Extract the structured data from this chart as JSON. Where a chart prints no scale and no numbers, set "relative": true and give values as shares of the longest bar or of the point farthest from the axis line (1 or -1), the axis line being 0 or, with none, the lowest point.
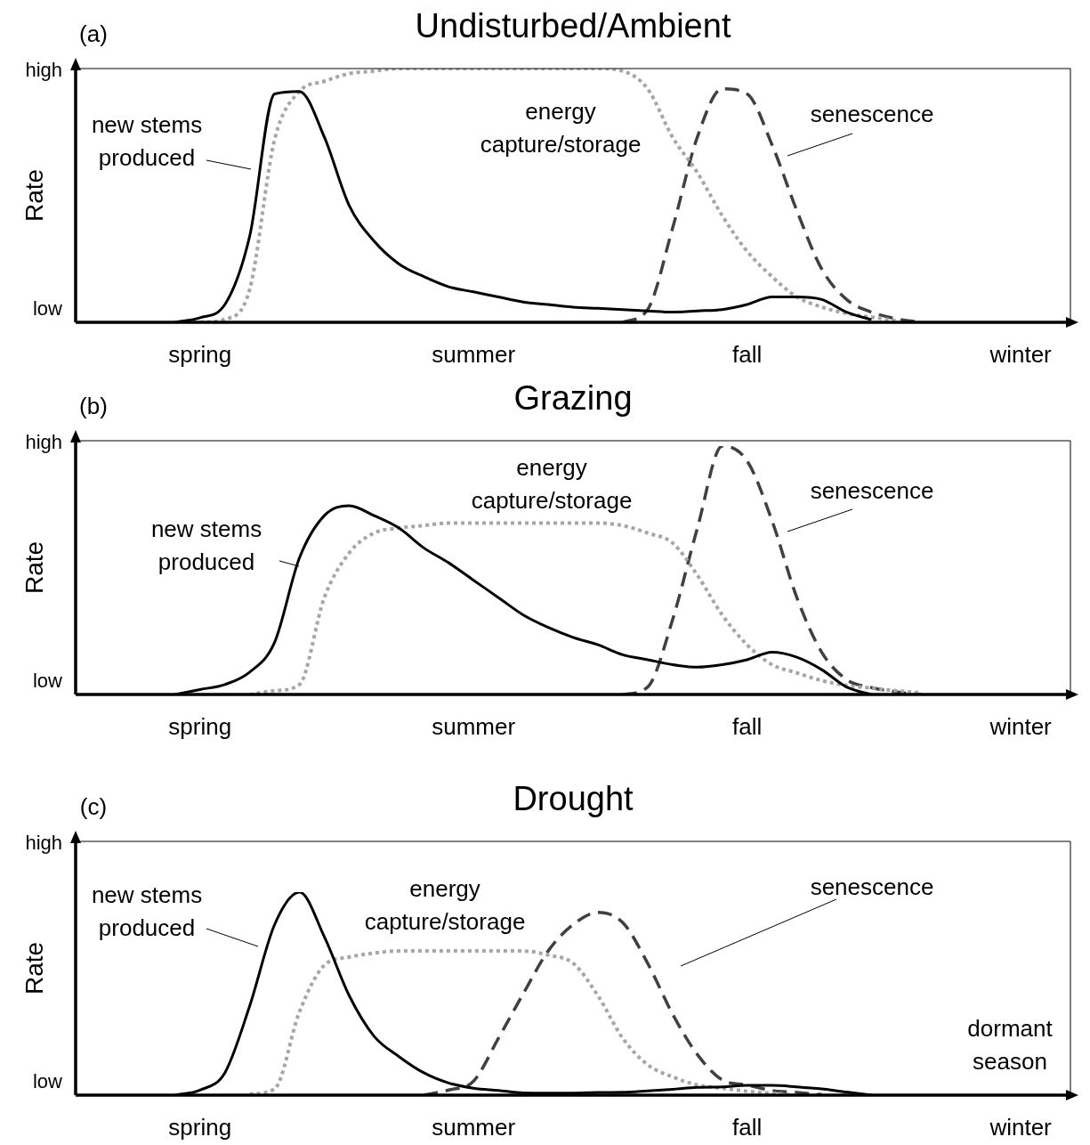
{
  "chart_data": [
    {
      "type": "line",
      "title": "Undisturbed/Ambient",
      "annotations": [
        "(a)",
        "high",
        "low"
      ],
      "ylabel": "Rate",
      "relative": true,
      "grid": false,
      "legend": false,
      "marker": "none",
      "categories": [
        null,
        null,
        null,
        null,
        null,
        "spring",
        null,
        null,
        null,
        null,
        null,
        null,
        null,
        null,
        null,
        null,
        "summer",
        null,
        null,
        null,
        null,
        null,
        null,
        null,
        null,
        null,
        null,
        "fall",
        null,
        null,
        null,
        null,
        null,
        null,
        null,
        null,
        null,
        null,
        "winter",
        null,
        null
      ],
      "series": [
        {
          "name": "new stems produced",
          "color": "#000000",
          "line_style": "solid",
          "values": [
            null,
            null,
            null,
            null,
            0,
            0.018,
            0.07,
            0.34,
            0.9,
            0.91,
            0.73,
            0.46,
            0.32,
            0.23,
            0.18,
            0.14,
            0.12,
            0.1,
            0.08,
            0.07,
            0.06,
            0.055,
            0.05,
            0.045,
            0.04,
            0.045,
            0.05,
            0.07,
            0.1,
            0.1,
            0.09,
            0.04,
            0.01,
            null,
            null,
            null,
            null,
            null,
            null,
            null,
            null
          ]
        },
        {
          "name": "energy capture/storage",
          "color": "#a6a6a6",
          "line_style": "dotted",
          "values": [
            null,
            null,
            null,
            null,
            null,
            0,
            0.012,
            0.13,
            0.72,
            0.91,
            0.95,
            0.98,
            0.99,
            1,
            1,
            1,
            1,
            1,
            1,
            1,
            1,
            1,
            0.99,
            0.92,
            0.73,
            0.59,
            0.42,
            0.28,
            0.18,
            0.1,
            0.06,
            0.035,
            0.02,
            0.007,
            null,
            null,
            null,
            null,
            null,
            null,
            null
          ]
        },
        {
          "name": "senescence",
          "color": "#404040",
          "line_style": "dashed",
          "values": [
            null,
            null,
            null,
            null,
            null,
            null,
            null,
            null,
            null,
            null,
            null,
            null,
            null,
            null,
            null,
            null,
            null,
            null,
            null,
            null,
            null,
            null,
            0,
            0.05,
            0.37,
            0.73,
            0.92,
            0.9,
            0.7,
            0.44,
            0.21,
            0.09,
            0.04,
            0.014,
            0,
            null,
            null,
            null,
            null,
            null,
            null
          ]
        }
      ]
    },
    {
      "type": "line",
      "title": "Grazing",
      "annotations": [
        "(b)",
        "high",
        "low"
      ],
      "ylabel": "Rate",
      "relative": true,
      "grid": false,
      "legend": false,
      "marker": "none",
      "categories": [
        null,
        null,
        null,
        null,
        null,
        "spring",
        null,
        null,
        null,
        null,
        null,
        null,
        null,
        null,
        null,
        null,
        "summer",
        null,
        null,
        null,
        null,
        null,
        null,
        null,
        null,
        null,
        null,
        "fall",
        null,
        null,
        null,
        null,
        null,
        null,
        null,
        null,
        null,
        null,
        "winter",
        null,
        null
      ],
      "series": [
        {
          "name": "new stems produced",
          "color": "#000000",
          "line_style": "solid",
          "values": [
            null,
            null,
            null,
            null,
            0,
            0.02,
            0.04,
            0.09,
            0.21,
            0.55,
            0.72,
            0.76,
            0.72,
            0.67,
            0.59,
            0.53,
            0.46,
            0.39,
            0.32,
            0.27,
            0.23,
            0.2,
            0.16,
            0.14,
            0.12,
            0.11,
            0.12,
            0.14,
            0.17,
            0.15,
            0.1,
            0.03,
            0,
            null,
            null,
            null,
            null,
            null,
            null,
            null,
            null
          ]
        },
        {
          "name": "energy capture/storage",
          "color": "#a6a6a6",
          "line_style": "dotted",
          "values": [
            null,
            null,
            null,
            null,
            null,
            null,
            null,
            0,
            0.015,
            0.04,
            0.39,
            0.57,
            0.65,
            0.67,
            0.68,
            0.69,
            0.69,
            0.69,
            0.69,
            0.69,
            0.69,
            0.69,
            0.68,
            0.65,
            0.61,
            0.48,
            0.32,
            0.2,
            0.12,
            0.087,
            0.056,
            0.036,
            0.026,
            0.015,
            0.007,
            null,
            null,
            null,
            null,
            null,
            null
          ]
        },
        {
          "name": "senescence",
          "color": "#404040",
          "line_style": "dashed",
          "values": [
            null,
            null,
            null,
            null,
            null,
            null,
            null,
            null,
            null,
            null,
            null,
            null,
            null,
            null,
            null,
            null,
            null,
            null,
            null,
            null,
            null,
            null,
            0,
            0.03,
            0.3,
            0.67,
            1,
            0.94,
            0.7,
            0.39,
            0.17,
            0.06,
            0.028,
            0.01,
            0,
            null,
            null,
            null,
            null,
            null,
            null
          ]
        }
      ]
    },
    {
      "type": "line",
      "title": "Drought",
      "annotations": [
        "(c)",
        "high",
        "low",
        "dormant season"
      ],
      "ylabel": "Rate",
      "relative": true,
      "grid": false,
      "legend": false,
      "marker": "none",
      "categories": [
        null,
        null,
        null,
        null,
        null,
        "spring",
        null,
        null,
        null,
        null,
        null,
        null,
        null,
        null,
        null,
        null,
        "summer",
        null,
        null,
        null,
        null,
        null,
        null,
        null,
        null,
        null,
        null,
        "fall",
        null,
        null,
        null,
        null,
        null,
        null,
        null,
        null,
        null,
        null,
        "winter",
        null,
        null
      ],
      "series": [
        {
          "name": "new stems produced",
          "color": "#000000",
          "line_style": "solid",
          "values": [
            null,
            null,
            null,
            null,
            0,
            0.025,
            0.11,
            0.44,
            0.84,
            1,
            0.78,
            0.49,
            0.29,
            0.19,
            0.11,
            0.06,
            0.034,
            0.023,
            0.011,
            0.01,
            0.01,
            0.013,
            0.014,
            0.021,
            0.029,
            0.038,
            0.041,
            0.048,
            0.048,
            0.041,
            0.031,
            0.015,
            0,
            null,
            null,
            null,
            null,
            null,
            null,
            null,
            null
          ]
        },
        {
          "name": "energy capture/storage",
          "color": "#a6a6a6",
          "line_style": "dotted",
          "values": [
            null,
            null,
            null,
            null,
            null,
            null,
            null,
            0.006,
            0.03,
            0.41,
            0.64,
            0.68,
            0.7,
            0.71,
            0.71,
            0.71,
            0.71,
            0.71,
            0.71,
            0.69,
            0.65,
            0.49,
            0.28,
            0.15,
            0.09,
            0.05,
            0.034,
            0.019,
            0.009,
            0,
            null,
            null,
            null,
            null,
            null,
            null,
            null,
            null,
            null,
            null,
            null
          ]
        },
        {
          "name": "senescence",
          "color": "#404040",
          "line_style": "dashed",
          "values": [
            null,
            null,
            null,
            null,
            null,
            null,
            null,
            null,
            null,
            null,
            null,
            null,
            null,
            null,
            0,
            0.025,
            0.069,
            0.28,
            0.5,
            0.71,
            0.84,
            0.9,
            0.85,
            0.65,
            0.4,
            0.2,
            0.075,
            0.05,
            0.023,
            0.013,
            0.003,
            null,
            null,
            null,
            null,
            null,
            null,
            null,
            null,
            null,
            null
          ]
        }
      ]
    }
  ]
}
